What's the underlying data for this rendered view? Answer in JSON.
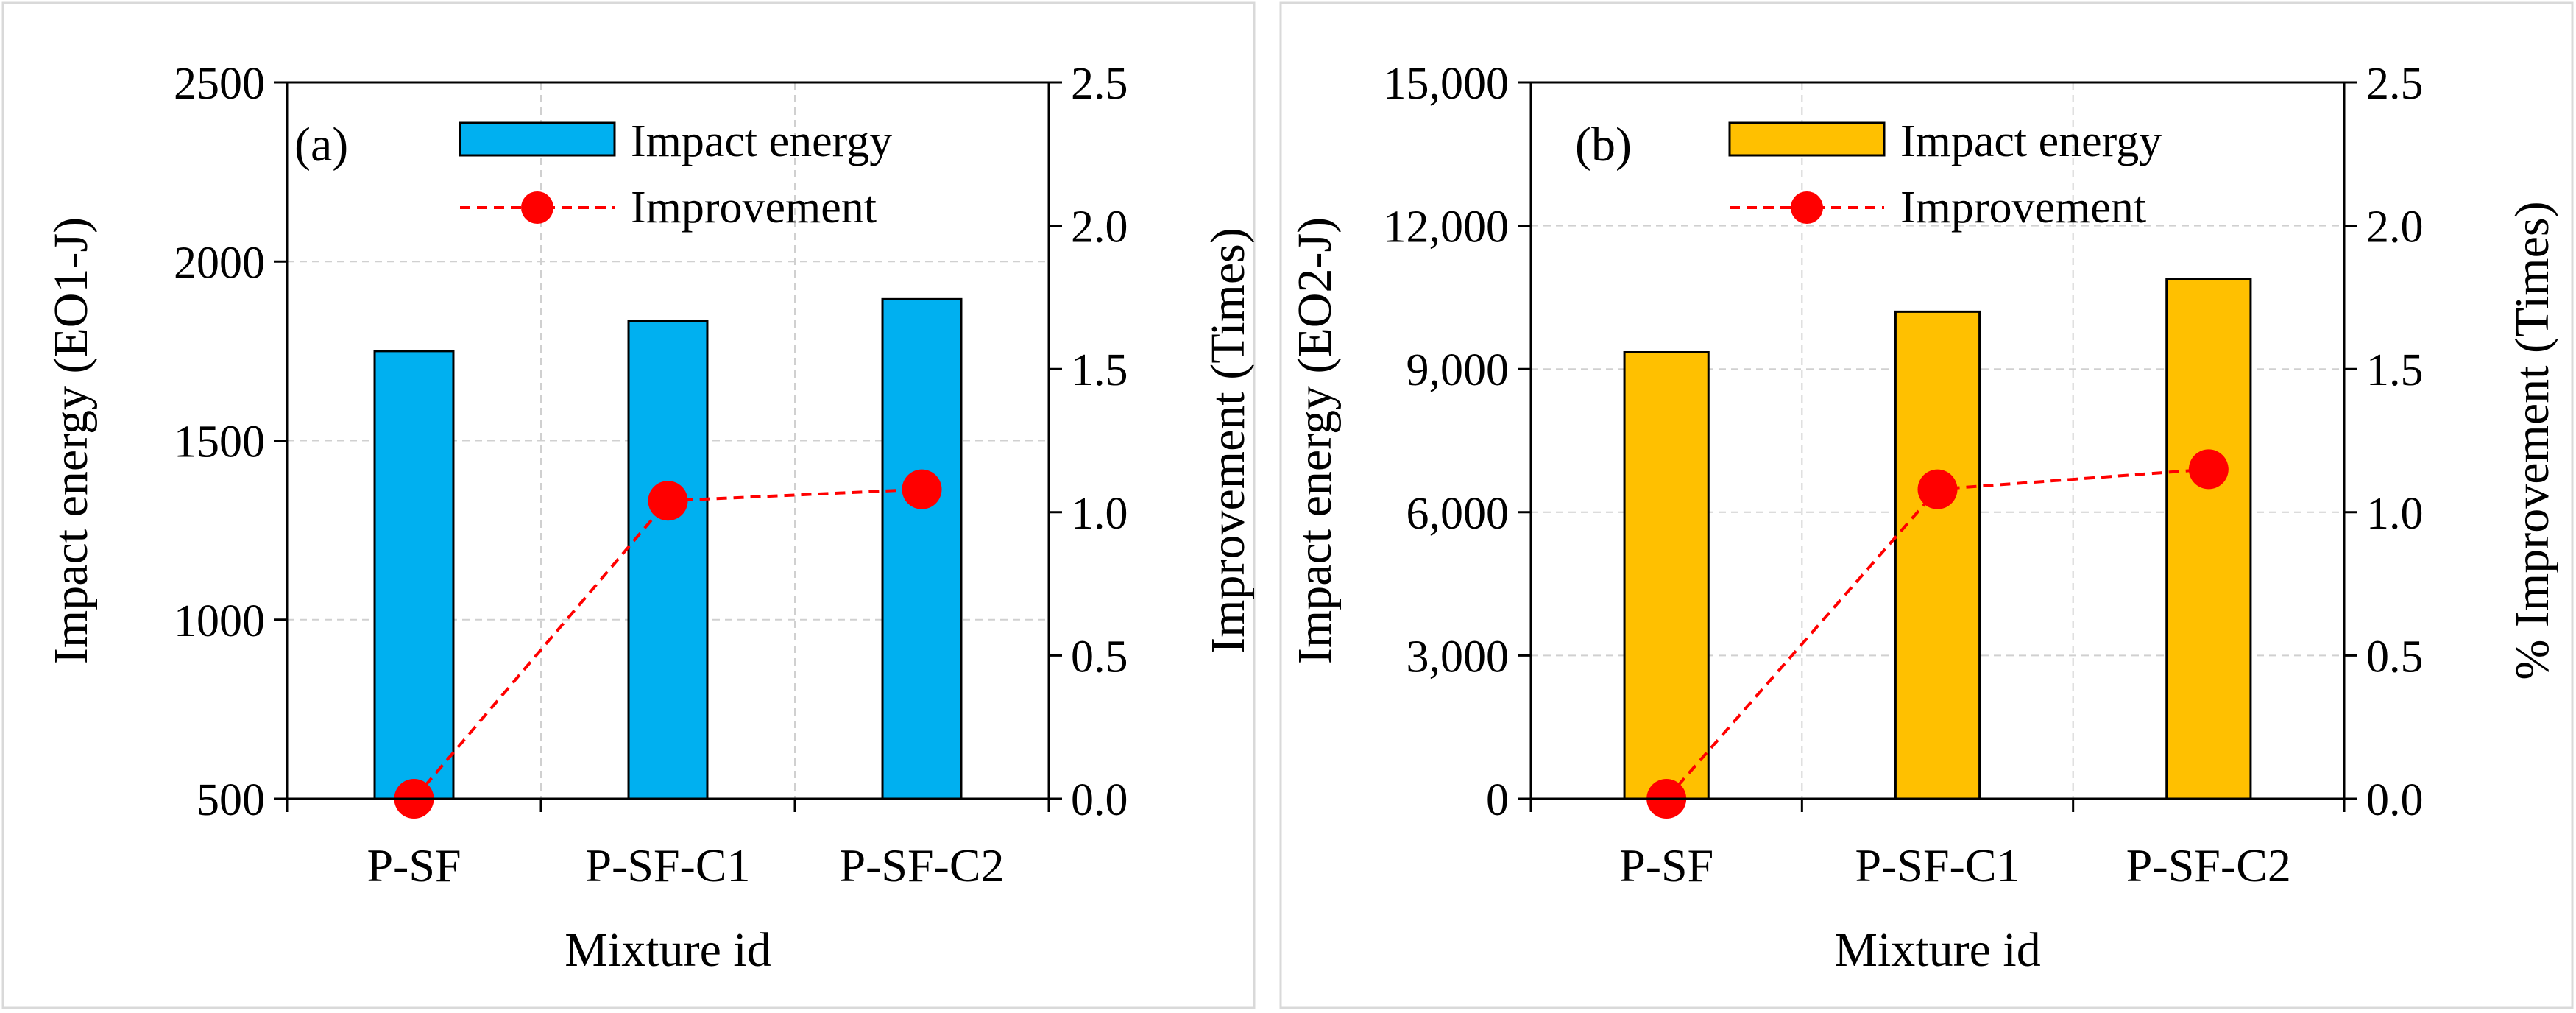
{
  "chart_data": [
    {
      "type": "bar",
      "panel_label": "(a)",
      "categories": [
        "P-SF",
        "P-SF-C1",
        "P-SF-C2"
      ],
      "xlabel": "Mixture id",
      "ylabel": "Impact energy (EO1-J)",
      "y2label": "Improvement (Times)",
      "ylim": [
        500,
        2500
      ],
      "y_ticks": [
        "500",
        "1000",
        "1500",
        "2000",
        "2500"
      ],
      "y2lim": [
        0,
        2.5
      ],
      "y2_ticks": [
        "0.0",
        "0.5",
        "1.0",
        "1.5",
        "2.0",
        "2.5"
      ],
      "grid": true,
      "legend_position": "top",
      "series": [
        {
          "name": "Impact energy",
          "kind": "bar",
          "axis": "left",
          "color": "#00B0F0",
          "values": [
            1750,
            1835,
            1895
          ]
        },
        {
          "name": "Improvement",
          "kind": "line",
          "axis": "right",
          "color": "#FF0000",
          "values": [
            0.0,
            1.04,
            1.08
          ]
        }
      ]
    },
    {
      "type": "bar",
      "panel_label": "(b)",
      "categories": [
        "P-SF",
        "P-SF-C1",
        "P-SF-C2"
      ],
      "xlabel": "Mixture id",
      "ylabel": "Impact energy (EO2-J)",
      "y2label": "% Improvement (Times)",
      "ylim": [
        0,
        15000
      ],
      "y_ticks": [
        "0",
        "3,000",
        "6,000",
        "9,000",
        "12,000",
        "15,000"
      ],
      "y2lim": [
        0,
        2.5
      ],
      "y2_ticks": [
        "0.0",
        "0.5",
        "1.0",
        "1.5",
        "2.0",
        "2.5"
      ],
      "grid": true,
      "legend_position": "top",
      "series": [
        {
          "name": "Impact energy",
          "kind": "bar",
          "axis": "left",
          "color": "#FFC000",
          "values": [
            9350,
            10200,
            10880
          ]
        },
        {
          "name": "Improvement",
          "kind": "line",
          "axis": "right",
          "color": "#FF0000",
          "values": [
            0.0,
            1.08,
            1.15
          ]
        }
      ]
    }
  ]
}
